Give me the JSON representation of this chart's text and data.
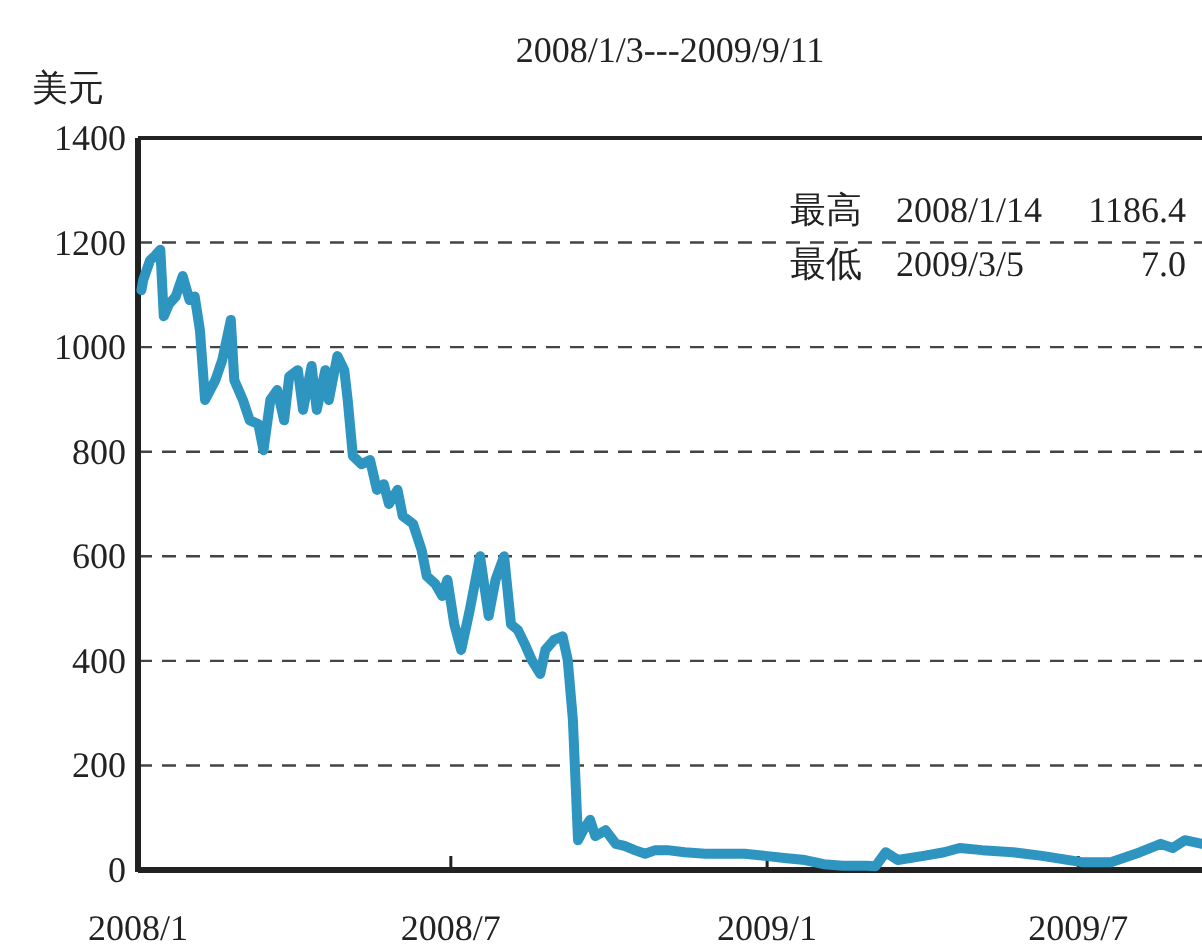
{
  "chart_data": {
    "type": "line",
    "title": "2008/1/3---2009/9/11",
    "ylabel": "美元",
    "annotations": [
      "最高",
      "2008/1/14",
      "1186.4",
      "最低",
      "2009/3/5",
      "7.0"
    ],
    "xlim": [
      "2008-01-01",
      "2009-09-11"
    ],
    "xticks": [
      {
        "value": "2008-01-01",
        "label": "2008/1"
      },
      {
        "value": "2008-07-01",
        "label": "2008/7"
      },
      {
        "value": "2009-01-01",
        "label": "2009/1"
      },
      {
        "value": "2009-07-01",
        "label": "2009/7"
      }
    ],
    "ylim": [
      0,
      1400
    ],
    "yticks": [
      0,
      200,
      400,
      600,
      800,
      1000,
      1200,
      1400
    ],
    "grid": "y",
    "marker": "none",
    "line_style": "solid",
    "series": [
      {
        "color": "#2e95c0",
        "x": [
          "2008-01-03",
          "2008-01-04",
          "2008-01-08",
          "2008-01-11",
          "2008-01-14",
          "2008-01-16",
          "2008-01-19",
          "2008-01-23",
          "2008-01-27",
          "2008-01-31",
          "2008-02-03",
          "2008-02-06",
          "2008-02-09",
          "2008-02-15",
          "2008-02-19",
          "2008-02-24",
          "2008-02-26",
          "2008-03-02",
          "2008-03-06",
          "2008-03-11",
          "2008-03-14",
          "2008-03-18",
          "2008-03-22",
          "2008-03-26",
          "2008-03-29",
          "2008-04-03",
          "2008-04-06",
          "2008-04-11",
          "2008-04-14",
          "2008-04-19",
          "2008-04-21",
          "2008-04-26",
          "2008-04-30",
          "2008-05-02",
          "2008-05-05",
          "2008-05-10",
          "2008-05-15",
          "2008-05-19",
          "2008-05-23",
          "2008-05-26",
          "2008-05-31",
          "2008-06-03",
          "2008-06-09",
          "2008-06-14",
          "2008-06-17",
          "2008-06-22",
          "2008-06-26",
          "2008-06-29",
          "2008-07-03",
          "2008-07-07",
          "2008-07-12",
          "2008-07-18",
          "2008-07-23",
          "2008-07-27",
          "2008-08-01",
          "2008-08-05",
          "2008-08-09",
          "2008-08-13",
          "2008-08-17",
          "2008-08-22",
          "2008-08-25",
          "2008-08-30",
          "2008-09-04",
          "2008-09-07",
          "2008-09-10",
          "2008-09-13",
          "2008-09-16",
          "2008-09-20",
          "2008-09-23",
          "2008-09-29",
          "2008-10-05",
          "2008-10-10",
          "2008-10-16",
          "2008-10-22",
          "2008-10-28",
          "2008-11-04",
          "2008-11-14",
          "2008-11-26",
          "2008-12-07",
          "2008-12-19",
          "2008-12-31",
          "2009-01-11",
          "2009-01-23",
          "2009-02-03",
          "2009-02-14",
          "2009-02-28",
          "2009-03-05",
          "2009-03-11",
          "2009-03-18",
          "2009-04-02",
          "2009-04-14",
          "2009-04-23",
          "2009-05-06",
          "2009-05-24",
          "2009-06-10",
          "2009-07-03",
          "2009-07-20",
          "2009-08-06",
          "2009-08-18",
          "2009-08-25",
          "2009-09-01",
          "2009-09-11"
        ],
        "values": [
          1109,
          1128,
          1166,
          1175,
          1186.4,
          1059,
          1082,
          1097,
          1136,
          1090,
          1097,
          1033,
          899,
          937,
          975,
          1052,
          937,
          899,
          860,
          853,
          803,
          899,
          918,
          860,
          944,
          956,
          880,
          964,
          880,
          956,
          899,
          983,
          956,
          899,
          792,
          776,
          784,
          727,
          738,
          700,
          727,
          677,
          662,
          612,
          562,
          547,
          524,
          555,
          470,
          421,
          497,
          600,
          486,
          555,
          600,
          470,
          459,
          432,
          402,
          375,
          421,
          440,
          447,
          402,
          287,
          57,
          76,
          96,
          65,
          76,
          50,
          46,
          38,
          31,
          38,
          38,
          34,
          31,
          31,
          31,
          27,
          23,
          19,
          11,
          8,
          8,
          7.0,
          34,
          19,
          27,
          34,
          42,
          38,
          34,
          27,
          15,
          15,
          34,
          50,
          42,
          57,
          50
        ]
      }
    ]
  }
}
